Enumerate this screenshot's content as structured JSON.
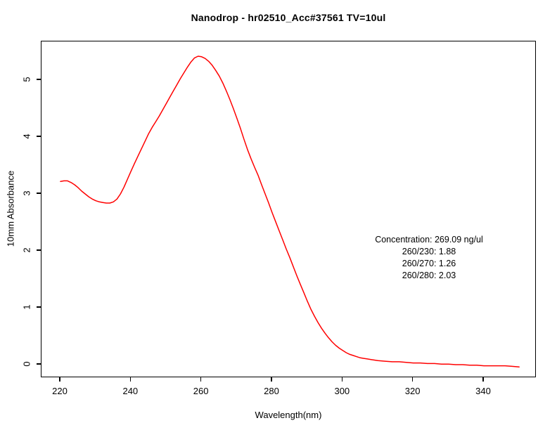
{
  "chart_data": {
    "type": "line",
    "title": "Nanodrop - hr02510_Acc#37561 TV=10ul",
    "xlabel": "Wavelength(nm)",
    "ylabel": "10mm Absorbance",
    "xlim": [
      214.6,
      355.0
    ],
    "ylim": [
      -0.23,
      5.68
    ],
    "x_ticks": [
      220,
      240,
      260,
      280,
      300,
      320,
      340
    ],
    "y_ticks": [
      0,
      1,
      2,
      3,
      4,
      5
    ],
    "grid": false,
    "legend": false,
    "line_color": "#ff0000",
    "background_color": "#ffffff",
    "axis_color": "#000000",
    "series": [
      {
        "name": "10mm Absorbance",
        "x": [
          220,
          221,
          222,
          223,
          224,
          225,
          226,
          227,
          228,
          229,
          230,
          231,
          232,
          233,
          234,
          235,
          236,
          237,
          238,
          239,
          240,
          241,
          242,
          243,
          244,
          245,
          246,
          247,
          248,
          249,
          250,
          251,
          252,
          253,
          254,
          255,
          256,
          257,
          258,
          259,
          260,
          261,
          262,
          263,
          264,
          265,
          266,
          267,
          268,
          269,
          270,
          271,
          272,
          273,
          274,
          275,
          276,
          277,
          278,
          279,
          280,
          281,
          282,
          283,
          284,
          285,
          286,
          287,
          288,
          289,
          290,
          291,
          292,
          293,
          294,
          295,
          296,
          297,
          298,
          299,
          300,
          301,
          302,
          303,
          304,
          305,
          306,
          307,
          308,
          309,
          310,
          312,
          314,
          316,
          318,
          320,
          322,
          324,
          326,
          328,
          330,
          332,
          334,
          336,
          338,
          340,
          342,
          344,
          346,
          348,
          350
        ],
        "y": [
          3.22,
          3.23,
          3.23,
          3.2,
          3.16,
          3.11,
          3.05,
          3.0,
          2.95,
          2.91,
          2.88,
          2.86,
          2.85,
          2.84,
          2.84,
          2.86,
          2.91,
          3.0,
          3.12,
          3.26,
          3.4,
          3.54,
          3.67,
          3.8,
          3.93,
          4.06,
          4.17,
          4.27,
          4.37,
          4.48,
          4.59,
          4.7,
          4.81,
          4.92,
          5.03,
          5.13,
          5.23,
          5.32,
          5.39,
          5.42,
          5.41,
          5.38,
          5.33,
          5.26,
          5.17,
          5.07,
          4.95,
          4.81,
          4.66,
          4.5,
          4.33,
          4.15,
          3.96,
          3.78,
          3.62,
          3.47,
          3.33,
          3.16,
          3.0,
          2.84,
          2.67,
          2.51,
          2.35,
          2.19,
          2.03,
          1.88,
          1.72,
          1.56,
          1.41,
          1.26,
          1.11,
          0.97,
          0.85,
          0.74,
          0.64,
          0.55,
          0.47,
          0.4,
          0.34,
          0.29,
          0.25,
          0.21,
          0.18,
          0.16,
          0.14,
          0.12,
          0.11,
          0.1,
          0.09,
          0.08,
          0.07,
          0.06,
          0.05,
          0.05,
          0.04,
          0.03,
          0.03,
          0.02,
          0.02,
          0.01,
          0.01,
          0.0,
          0.0,
          -0.01,
          -0.01,
          -0.02,
          -0.02,
          -0.02,
          -0.02,
          -0.03,
          -0.04
        ]
      }
    ],
    "annotations": [
      "Concentration: 269.09 ng/ul",
      "260/230: 1.88",
      "260/270: 1.26",
      "260/280: 2.03"
    ]
  }
}
